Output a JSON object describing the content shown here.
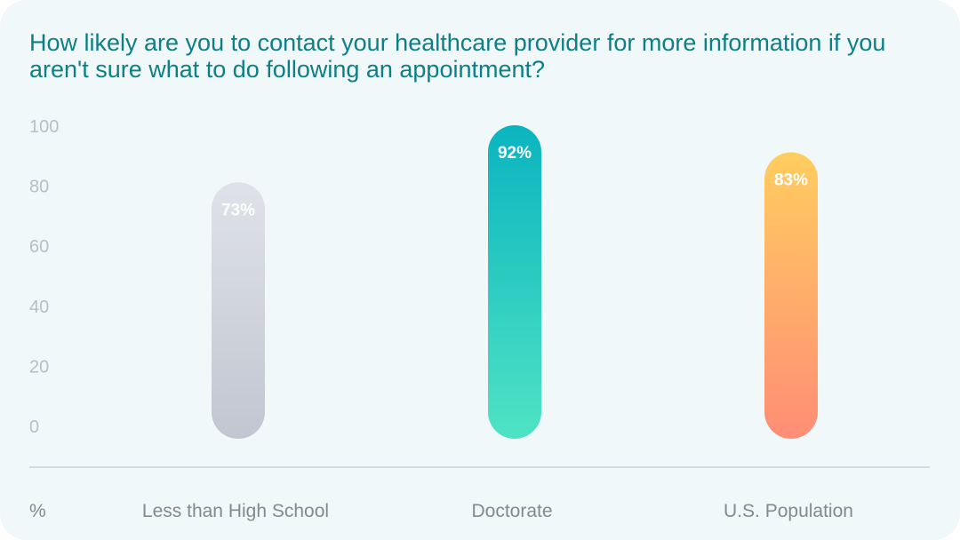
{
  "title": "How likely are you to contact your healthcare provider for more information if you aren't sure what to do following an appointment?",
  "chart_data": {
    "type": "bar",
    "categories": [
      "Less than High School",
      "Doctorate",
      "U.S. Population"
    ],
    "values": [
      73,
      92,
      83
    ],
    "value_labels": [
      "73%",
      "92%",
      "83%"
    ],
    "ylabel": "%",
    "ylim": [
      0,
      100
    ],
    "yticks": [
      "0",
      "20",
      "40",
      "60",
      "80",
      "100"
    ],
    "grid": false,
    "legend": "none",
    "bar_colors": [
      {
        "top": "#dfe2e8",
        "bottom": "#c2c6d1"
      },
      {
        "top": "#0ab4bf",
        "bottom": "#4fe3c4"
      },
      {
        "top": "#ffcd5f",
        "bottom": "#ff8d76"
      }
    ]
  },
  "colors": {
    "background": "#f1f8fa",
    "title": "#0d7f86",
    "axis_line": "#d2dce0",
    "tick_text": "#b7bfc5",
    "category_text": "#7f8a92"
  }
}
